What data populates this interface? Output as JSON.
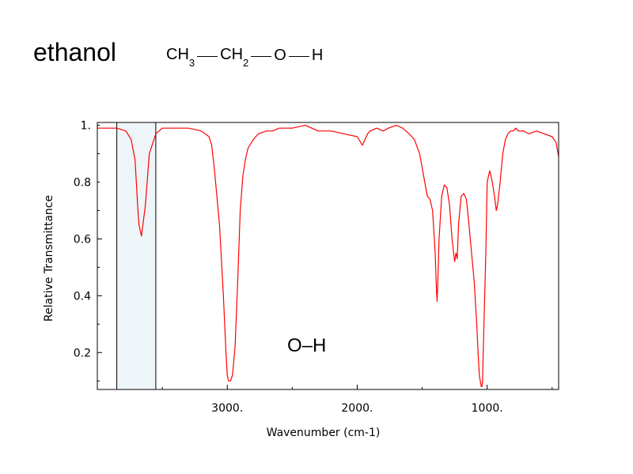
{
  "title": "ethanol",
  "formula": {
    "ch3": "CH",
    "ch3_sub": "3",
    "ch2": "CH",
    "ch2_sub": "2",
    "o": "O",
    "h": "H"
  },
  "annotation": "O–H",
  "colors": {
    "line": "#ff0000",
    "highlight_fill": "#eef5f8",
    "frame": "#000000"
  },
  "chart_data": {
    "type": "line",
    "title": "",
    "xlabel": "Wavenumber (cm-1)",
    "ylabel": "Relative Transmittance",
    "xlim": [
      4000,
      450
    ],
    "x_reversed": true,
    "ylim": [
      0.07,
      1.01
    ],
    "xticks": [
      {
        "value": 3000,
        "label": "3000."
      },
      {
        "value": 2000,
        "label": "2000."
      },
      {
        "value": 1000,
        "label": "1000."
      }
    ],
    "yticks": [
      {
        "value": 1.0,
        "label": "1."
      },
      {
        "value": 0.8,
        "label": "0.8"
      },
      {
        "value": 0.6,
        "label": "0.6"
      },
      {
        "value": 0.4,
        "label": "0.4"
      },
      {
        "value": 0.2,
        "label": "0.2"
      }
    ],
    "highlight": {
      "x_from": 3850,
      "x_to": 3550,
      "label": "O–H"
    },
    "series": [
      {
        "color": "#ff0000",
        "x": [
          4000,
          3920,
          3850,
          3780,
          3740,
          3710,
          3700,
          3690,
          3680,
          3660,
          3630,
          3600,
          3550,
          3500,
          3400,
          3300,
          3200,
          3140,
          3120,
          3100,
          3060,
          3030,
          3010,
          3000,
          2990,
          2975,
          2960,
          2940,
          2920,
          2900,
          2880,
          2860,
          2840,
          2800,
          2760,
          2700,
          2650,
          2600,
          2500,
          2400,
          2350,
          2300,
          2200,
          2100,
          2000,
          1960,
          1940,
          1920,
          1900,
          1850,
          1800,
          1760,
          1700,
          1650,
          1600,
          1560,
          1520,
          1500,
          1480,
          1460,
          1440,
          1420,
          1400,
          1390,
          1385,
          1380,
          1375,
          1370,
          1350,
          1330,
          1310,
          1290,
          1270,
          1250,
          1240,
          1230,
          1220,
          1200,
          1180,
          1160,
          1140,
          1120,
          1100,
          1080,
          1070,
          1060,
          1050,
          1045,
          1040,
          1035,
          1030,
          1010,
          1000,
          990,
          980,
          960,
          940,
          930,
          920,
          900,
          880,
          860,
          840,
          820,
          800,
          780,
          760,
          720,
          680,
          620,
          560,
          500,
          470,
          450
        ],
        "y": [
          0.99,
          0.99,
          0.99,
          0.98,
          0.95,
          0.88,
          0.8,
          0.72,
          0.65,
          0.61,
          0.72,
          0.9,
          0.97,
          0.99,
          0.99,
          0.99,
          0.98,
          0.96,
          0.93,
          0.85,
          0.65,
          0.4,
          0.2,
          0.12,
          0.1,
          0.1,
          0.12,
          0.22,
          0.45,
          0.7,
          0.82,
          0.88,
          0.92,
          0.95,
          0.97,
          0.98,
          0.98,
          0.99,
          0.99,
          1.0,
          0.99,
          0.98,
          0.98,
          0.97,
          0.96,
          0.93,
          0.95,
          0.97,
          0.98,
          0.99,
          0.98,
          0.99,
          1.0,
          0.99,
          0.97,
          0.95,
          0.9,
          0.85,
          0.8,
          0.75,
          0.74,
          0.7,
          0.55,
          0.42,
          0.38,
          0.45,
          0.52,
          0.6,
          0.75,
          0.79,
          0.78,
          0.72,
          0.6,
          0.52,
          0.55,
          0.53,
          0.65,
          0.75,
          0.76,
          0.74,
          0.65,
          0.55,
          0.45,
          0.3,
          0.2,
          0.12,
          0.09,
          0.08,
          0.08,
          0.1,
          0.2,
          0.55,
          0.8,
          0.82,
          0.84,
          0.8,
          0.74,
          0.7,
          0.72,
          0.8,
          0.9,
          0.95,
          0.97,
          0.98,
          0.98,
          0.99,
          0.98,
          0.98,
          0.97,
          0.98,
          0.97,
          0.96,
          0.94,
          0.89
        ]
      }
    ]
  }
}
